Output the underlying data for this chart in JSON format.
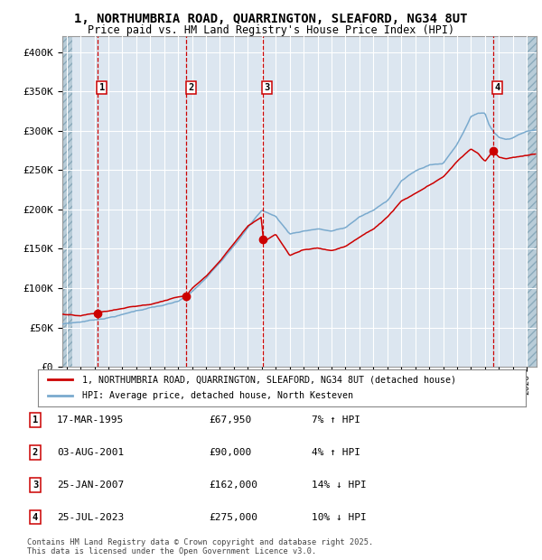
{
  "title_line1": "1, NORTHUMBRIA ROAD, QUARRINGTON, SLEAFORD, NG34 8UT",
  "title_line2": "Price paid vs. HM Land Registry's House Price Index (HPI)",
  "bg_color": "#dce6f0",
  "hatch_color": "#b8ccd8",
  "grid_color": "#ffffff",
  "red_line_color": "#cc0000",
  "blue_line_color": "#7aaace",
  "vline_color": "#cc0000",
  "ylim": [
    0,
    420000
  ],
  "yticks": [
    0,
    50000,
    100000,
    150000,
    200000,
    250000,
    300000,
    350000,
    400000
  ],
  "ytick_labels": [
    "£0",
    "£50K",
    "£100K",
    "£150K",
    "£200K",
    "£250K",
    "£300K",
    "£350K",
    "£400K"
  ],
  "xlim_start": 1992.7,
  "xlim_end": 2026.7,
  "xtick_years": [
    1993,
    1994,
    1995,
    1996,
    1997,
    1998,
    1999,
    2000,
    2001,
    2002,
    2003,
    2004,
    2005,
    2006,
    2007,
    2008,
    2009,
    2010,
    2011,
    2012,
    2013,
    2014,
    2015,
    2016,
    2017,
    2018,
    2019,
    2020,
    2021,
    2022,
    2023,
    2024,
    2025,
    2026
  ],
  "sales": [
    {
      "num": 1,
      "year": 1995.21,
      "price": 67950,
      "label": "1"
    },
    {
      "num": 2,
      "year": 2001.59,
      "price": 90000,
      "label": "2"
    },
    {
      "num": 3,
      "year": 2007.07,
      "price": 162000,
      "label": "3"
    },
    {
      "num": 4,
      "year": 2023.57,
      "price": 275000,
      "label": "4"
    }
  ],
  "table_rows": [
    {
      "num": "1",
      "date": "17-MAR-1995",
      "price": "£67,950",
      "pct": "7% ↑ HPI"
    },
    {
      "num": "2",
      "date": "03-AUG-2001",
      "price": "£90,000",
      "pct": "4% ↑ HPI"
    },
    {
      "num": "3",
      "date": "25-JAN-2007",
      "price": "£162,000",
      "pct": "14% ↓ HPI"
    },
    {
      "num": "4",
      "date": "25-JUL-2023",
      "price": "£275,000",
      "pct": "10% ↓ HPI"
    }
  ],
  "legend_red_label": "1, NORTHUMBRIA ROAD, QUARRINGTON, SLEAFORD, NG34 8UT (detached house)",
  "legend_blue_label": "HPI: Average price, detached house, North Kesteven",
  "footer": "Contains HM Land Registry data © Crown copyright and database right 2025.\nThis data is licensed under the Open Government Licence v3.0.",
  "hpi_knots_x": [
    1992.7,
    1993,
    1994,
    1995,
    1996,
    1997,
    1998,
    1999,
    2000,
    2001,
    2002,
    2003,
    2004,
    2005,
    2006,
    2007,
    2008,
    2009,
    2010,
    2011,
    2012,
    2013,
    2014,
    2015,
    2016,
    2017,
    2018,
    2019,
    2020,
    2021,
    2022,
    2022.5,
    2023,
    2023.3,
    2023.7,
    2024,
    2024.5,
    2025,
    2025.5,
    2026,
    2026.7
  ],
  "hpi_knots_y": [
    54000,
    55000,
    57000,
    60000,
    63000,
    67000,
    72000,
    76000,
    79000,
    83000,
    95000,
    112000,
    132000,
    155000,
    178000,
    200000,
    192000,
    170000,
    174000,
    177000,
    174000,
    178000,
    192000,
    200000,
    212000,
    238000,
    250000,
    258000,
    260000,
    285000,
    320000,
    325000,
    325000,
    310000,
    300000,
    295000,
    292000,
    295000,
    300000,
    303000,
    305000
  ],
  "red_knots_x": [
    1992.7,
    1993,
    1994,
    1995.0,
    1995.21,
    1996,
    1997,
    1998,
    1999,
    2000,
    2001,
    2001.59,
    2002,
    2003,
    2004,
    2005,
    2006,
    2007.0,
    2007.07,
    2007.3,
    2008,
    2009,
    2010,
    2011,
    2012,
    2013,
    2014,
    2015,
    2016,
    2017,
    2018,
    2019,
    2020,
    2021,
    2022,
    2022.5,
    2023.0,
    2023.57,
    2024,
    2024.5,
    2025,
    2026,
    2026.7
  ],
  "red_knots_y": [
    67000,
    66000,
    64000,
    67000,
    67950,
    70000,
    73000,
    76000,
    78000,
    83000,
    88000,
    90000,
    100000,
    115000,
    135000,
    158000,
    180000,
    192000,
    162000,
    162000,
    170000,
    143000,
    150000,
    153000,
    150000,
    156000,
    168000,
    178000,
    193000,
    213000,
    222000,
    232000,
    242000,
    262000,
    278000,
    272000,
    262000,
    275000,
    268000,
    266000,
    268000,
    270000,
    272000
  ]
}
